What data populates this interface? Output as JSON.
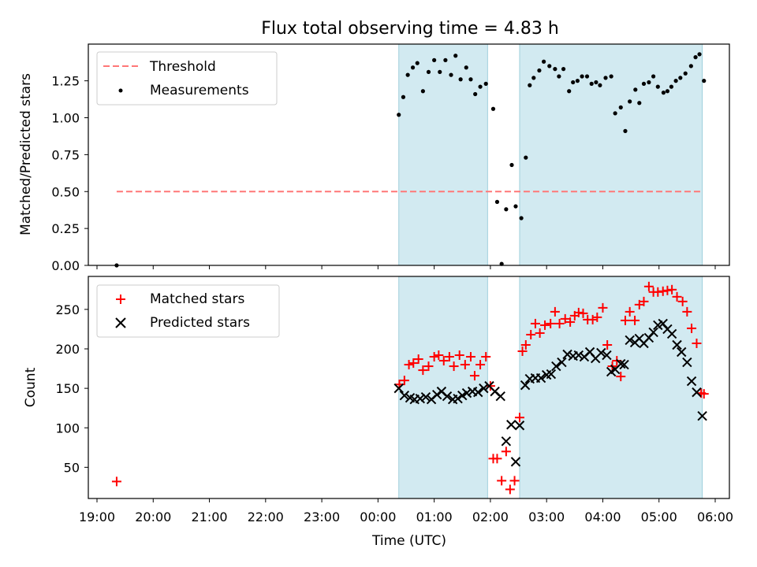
{
  "chart_data": [
    {
      "type": "scatter",
      "title": "Flux total observing time = 4.83 h",
      "ylabel": "Matched/Predicted stars",
      "ylim": [
        0,
        1.5
      ],
      "yticks": [
        "0.00",
        "0.25",
        "0.50",
        "0.75",
        "1.00",
        "1.25"
      ],
      "legend_position": "top-left",
      "threshold": {
        "name": "Threshold",
        "y": 0.5,
        "x_start": 19.35,
        "x_end": 29.78,
        "color": "#ff7777",
        "style": "dashed"
      },
      "series": [
        {
          "name": "Measurements",
          "color": "#000000",
          "marker": "dot",
          "x": [
            19.35,
            24.37,
            24.45,
            24.53,
            24.62,
            24.7,
            24.8,
            24.9,
            25.0,
            25.1,
            25.2,
            25.3,
            25.38,
            25.47,
            25.57,
            25.65,
            25.73,
            25.82,
            25.92,
            26.05,
            26.12,
            26.2,
            26.28,
            26.38,
            26.45,
            26.55,
            26.63,
            26.7,
            26.77,
            26.87,
            26.95,
            27.05,
            27.15,
            27.22,
            27.3,
            27.4,
            27.47,
            27.55,
            27.63,
            27.72,
            27.8,
            27.88,
            27.95,
            28.05,
            28.15,
            28.22,
            28.32,
            28.4,
            28.48,
            28.58,
            28.65,
            28.73,
            28.82,
            28.9,
            28.98,
            29.08,
            29.15,
            29.22,
            29.3,
            29.38,
            29.47,
            29.57,
            29.65,
            29.72,
            29.8
          ],
          "y": [
            0.0,
            1.02,
            1.14,
            1.29,
            1.34,
            1.37,
            1.18,
            1.31,
            1.39,
            1.31,
            1.39,
            1.29,
            1.42,
            1.26,
            1.34,
            1.26,
            1.16,
            1.21,
            1.23,
            1.06,
            0.43,
            0.01,
            0.38,
            0.68,
            0.4,
            0.32,
            0.73,
            1.22,
            1.27,
            1.32,
            1.38,
            1.35,
            1.33,
            1.28,
            1.33,
            1.18,
            1.24,
            1.25,
            1.28,
            1.28,
            1.23,
            1.24,
            1.22,
            1.27,
            1.28,
            1.03,
            1.07,
            0.91,
            1.11,
            1.19,
            1.1,
            1.23,
            1.24,
            1.28,
            1.21,
            1.17,
            1.18,
            1.21,
            1.25,
            1.27,
            1.3,
            1.35,
            1.41,
            1.43,
            1.25
          ]
        }
      ]
    },
    {
      "type": "scatter",
      "xlabel": "Time (UTC)",
      "ylabel": "Count",
      "ylim": [
        10,
        285
      ],
      "yticks": [
        "50",
        "100",
        "150",
        "200",
        "250"
      ],
      "xticks": [
        "19:00",
        "20:00",
        "21:00",
        "22:00",
        "23:00",
        "00:00",
        "01:00",
        "02:00",
        "03:00",
        "04:00",
        "05:00",
        "06:00"
      ],
      "legend_position": "top-left",
      "series": [
        {
          "name": "Matched stars",
          "color": "#ff0000",
          "marker": "plus",
          "x": [
            19.35,
            24.38,
            24.47,
            24.55,
            24.63,
            24.72,
            24.8,
            24.9,
            25.0,
            25.08,
            25.17,
            25.27,
            25.35,
            25.45,
            25.55,
            25.65,
            25.72,
            25.82,
            25.92,
            26.0,
            26.05,
            26.12,
            26.2,
            26.28,
            26.35,
            26.43,
            26.52,
            26.57,
            26.63,
            26.72,
            26.8,
            26.88,
            26.97,
            27.07,
            27.15,
            27.23,
            27.33,
            27.42,
            27.5,
            27.57,
            27.65,
            27.73,
            27.82,
            27.9,
            28.0,
            28.08,
            28.17,
            28.25,
            28.32,
            28.4,
            28.48,
            28.57,
            28.65,
            28.73,
            28.82,
            28.9,
            28.98,
            29.07,
            29.15,
            29.23,
            29.32,
            29.42,
            29.5,
            29.58,
            29.67,
            29.75,
            29.8
          ],
          "y": [
            32,
            155,
            160,
            180,
            182,
            187,
            173,
            178,
            190,
            192,
            185,
            190,
            178,
            192,
            180,
            190,
            166,
            180,
            190,
            153,
            61,
            61,
            33,
            70,
            22,
            33,
            113,
            197,
            205,
            218,
            232,
            220,
            230,
            232,
            247,
            232,
            238,
            234,
            242,
            246,
            245,
            237,
            237,
            240,
            252,
            205,
            178,
            185,
            165,
            236,
            247,
            236,
            256,
            260,
            279,
            272,
            272,
            273,
            274,
            275,
            266,
            260,
            247,
            226,
            207,
            144,
            143
          ],
          "clip_y": [
            true,
            false,
            false,
            false,
            false,
            false,
            false,
            false,
            false,
            false,
            false,
            false,
            false,
            false,
            false,
            false,
            false,
            false,
            false,
            false,
            false,
            false,
            false,
            false,
            false,
            false,
            false,
            false,
            false,
            false,
            false,
            false,
            false,
            false,
            false,
            false,
            false,
            false,
            false,
            false,
            false,
            false,
            false,
            false,
            false,
            false,
            false,
            false,
            false,
            false,
            false,
            false,
            false,
            false,
            false,
            false,
            false,
            false,
            false,
            false,
            false,
            false,
            false,
            false,
            false,
            false,
            false
          ]
        },
        {
          "name": "Predicted stars",
          "color": "#000000",
          "marker": "x",
          "x": [
            24.37,
            24.47,
            24.57,
            24.65,
            24.75,
            24.85,
            24.95,
            25.05,
            25.13,
            25.23,
            25.33,
            25.42,
            25.5,
            25.58,
            25.68,
            25.78,
            25.88,
            25.98,
            26.08,
            26.18,
            26.28,
            26.37,
            26.45,
            26.52,
            26.62,
            26.7,
            26.8,
            26.9,
            27.0,
            27.08,
            27.17,
            27.27,
            27.37,
            27.47,
            27.57,
            27.67,
            27.77,
            27.87,
            27.97,
            28.07,
            28.15,
            28.22,
            28.32,
            28.38,
            28.48,
            28.57,
            28.65,
            28.73,
            28.82,
            28.9,
            28.98,
            29.07,
            29.15,
            29.23,
            29.32,
            29.4,
            29.5,
            29.58,
            29.67,
            29.77
          ],
          "y": [
            150,
            141,
            138,
            136,
            137,
            139,
            136,
            142,
            146,
            140,
            136,
            137,
            141,
            144,
            146,
            145,
            150,
            153,
            146,
            140,
            83,
            104,
            57,
            103,
            154,
            162,
            163,
            163,
            167,
            168,
            178,
            183,
            193,
            191,
            192,
            190,
            196,
            188,
            195,
            192,
            171,
            174,
            181,
            180,
            211,
            208,
            213,
            207,
            214,
            221,
            230,
            232,
            225,
            219,
            205,
            196,
            183,
            159,
            145,
            115
          ]
        }
      ],
      "shaded_spans": [
        {
          "x_start": 24.37,
          "x_end": 25.95,
          "color": "#add8e6"
        },
        {
          "x_start": 26.52,
          "x_end": 29.77,
          "color": "#add8e6"
        }
      ]
    }
  ]
}
